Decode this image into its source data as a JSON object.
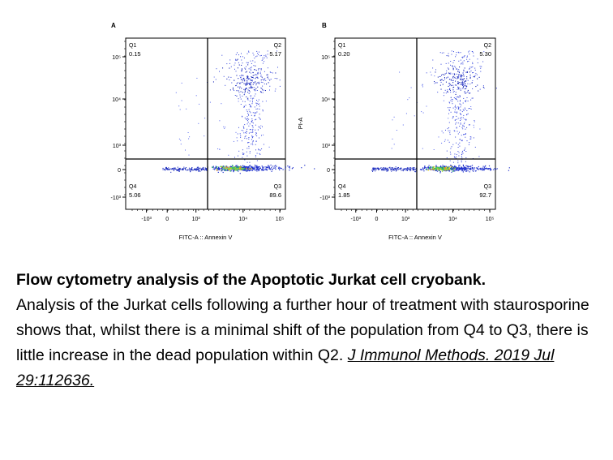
{
  "chart_data": [
    {
      "type": "scatter",
      "panel_label": "A",
      "xlabel": "FITC-A :: Annexin V",
      "ylabel": "",
      "x_tick_labels": [
        "-10³",
        "0",
        "10³",
        "10⁴",
        "10⁵"
      ],
      "y_tick_labels": [
        "10⁵",
        "10⁴",
        "10³",
        "0",
        "-10³"
      ],
      "quadrant_gate": {
        "x": 300,
        "y": 0
      },
      "quadrants": [
        {
          "name": "Q1",
          "percent": "0.15"
        },
        {
          "name": "Q2",
          "percent": "5.17"
        },
        {
          "name": "Q3",
          "percent": "89.6"
        },
        {
          "name": "Q4",
          "percent": "5.06"
        }
      ]
    },
    {
      "type": "scatter",
      "panel_label": "B",
      "xlabel": "FITC-A :: Annexin V",
      "ylabel": "PI-A",
      "x_tick_labels": [
        "-10³",
        "0",
        "10³",
        "10⁴",
        "10⁵"
      ],
      "y_tick_labels": [
        "10⁵",
        "10⁴",
        "10³",
        "0",
        "-10³"
      ],
      "quadrant_gate": {
        "x": 300,
        "y": 0
      },
      "quadrants": [
        {
          "name": "Q1",
          "percent": "0.20"
        },
        {
          "name": "Q2",
          "percent": "5.30"
        },
        {
          "name": "Q3",
          "percent": "92.7"
        },
        {
          "name": "Q4",
          "percent": "1.85"
        }
      ]
    }
  ],
  "caption": {
    "title": "Flow cytometry analysis of the Apoptotic Jurkat cell cryobank.",
    "body": "Analysis of the Jurkat cells following a further hour of treatment with staurosporine shows that, whilst there is a minimal shift of the population from Q4 to Q3, there is little increase in the dead population within Q2.",
    "reference": "J Immunol Methods. 2019 Jul 29:112636."
  }
}
